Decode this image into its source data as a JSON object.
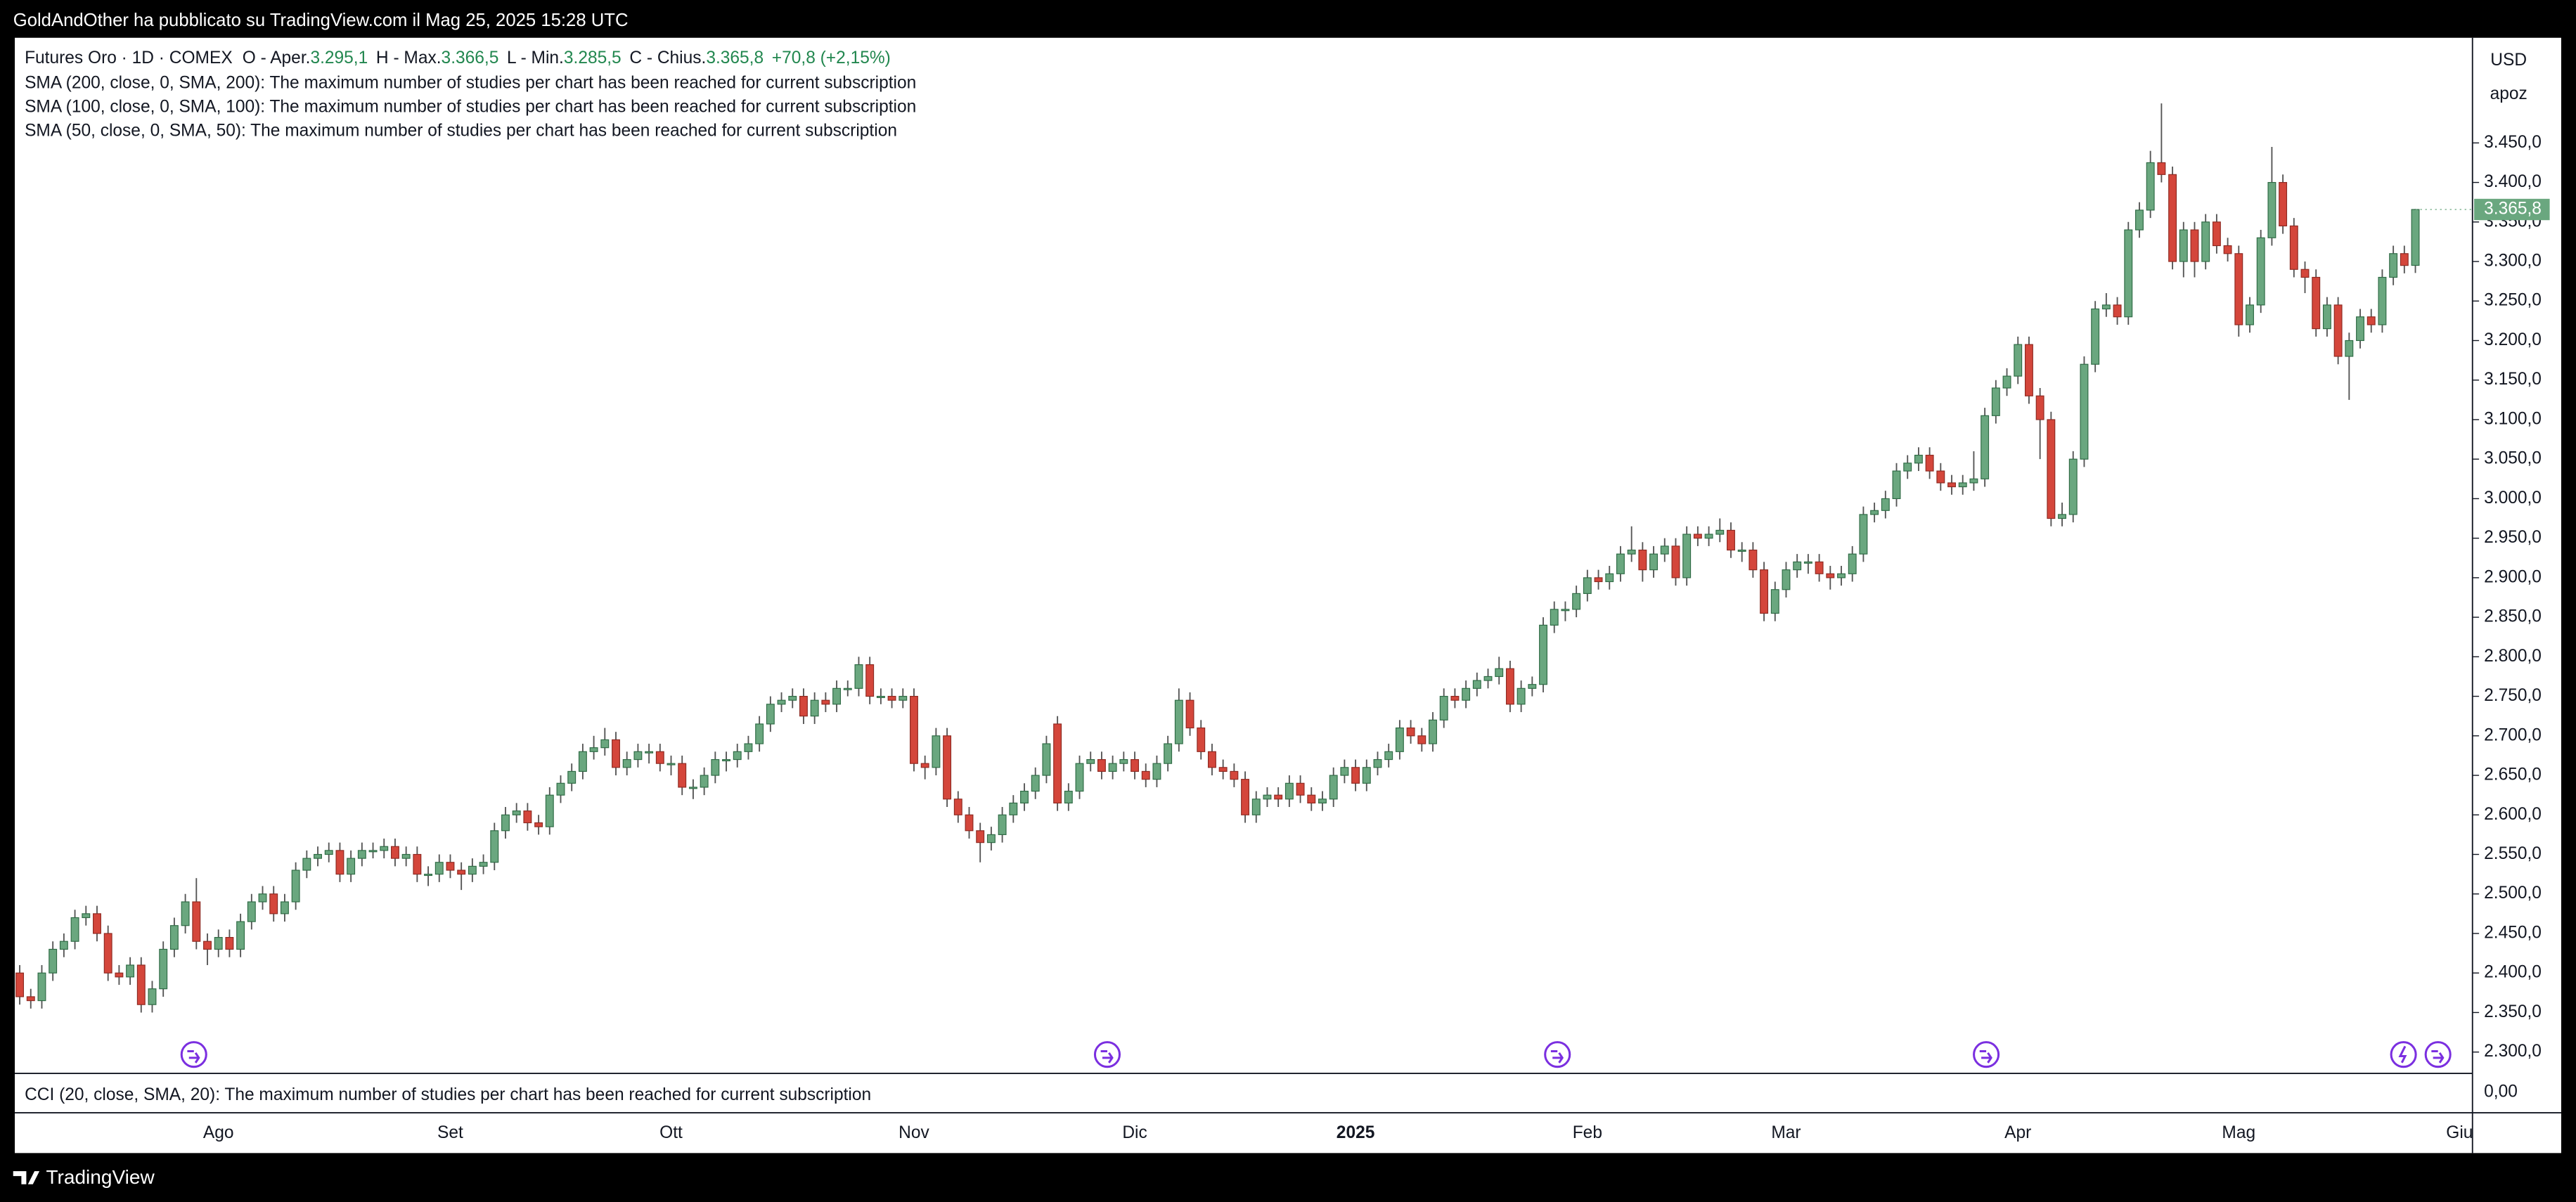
{
  "publisher_bar": "GoldAndOther ha pubblicato su TradingView.com il Mag 25, 2025 15:28 UTC",
  "footer_brand": "TradingView",
  "studies": [
    "SMA (200, close, 0, SMA, 200): The maximum number of studies per chart has been reached for current subscription",
    "SMA (100, close, 0, SMA, 100): The maximum number of studies per chart has been reached for current subscription",
    "SMA (50, close, 0, SMA, 50): The maximum number of studies per chart has been reached for current subscription"
  ],
  "cci_pane": {
    "text": "CCI (20, close, SMA, 20): The maximum number of studies per chart has been reached for current subscription",
    "yticks": [
      {
        "value": 0,
        "label": "0,00"
      }
    ]
  },
  "chart_data": {
    "type": "candlestick",
    "title": "Futures Oro · 1D · COMEX",
    "ohlc_legend": [
      {
        "key": "O - Aper.",
        "value": "3.295,1"
      },
      {
        "key": "H - Max.",
        "value": "3.366,5"
      },
      {
        "key": "L - Min.",
        "value": "3.285,5"
      },
      {
        "key": "C - Chius.",
        "value": "3.365,8"
      }
    ],
    "change": "+70,8 (+2,15%)",
    "currency": "USD",
    "scale_label": "apoz",
    "last_value_label": "3.365,8",
    "up_color": "#6aa77f",
    "down_color": "#d4463b",
    "wick_color": "#555555",
    "grid": false,
    "ylim": [
      2273,
      3583
    ],
    "yticks": [
      {
        "value": 2300,
        "label": "2.300,0"
      },
      {
        "value": 2350,
        "label": "2.350,0"
      },
      {
        "value": 2400,
        "label": "2.400,0"
      },
      {
        "value": 2450,
        "label": "2.450,0"
      },
      {
        "value": 2500,
        "label": "2.500,0"
      },
      {
        "value": 2550,
        "label": "2.550,0"
      },
      {
        "value": 2600,
        "label": "2.600,0"
      },
      {
        "value": 2650,
        "label": "2.650,0"
      },
      {
        "value": 2700,
        "label": "2.700,0"
      },
      {
        "value": 2750,
        "label": "2.750,0"
      },
      {
        "value": 2800,
        "label": "2.800,0"
      },
      {
        "value": 2850,
        "label": "2.850,0"
      },
      {
        "value": 2900,
        "label": "2.900,0"
      },
      {
        "value": 2950,
        "label": "2.950,0"
      },
      {
        "value": 3000,
        "label": "3.000,0"
      },
      {
        "value": 3050,
        "label": "3.050,0"
      },
      {
        "value": 3100,
        "label": "3.100,0"
      },
      {
        "value": 3150,
        "label": "3.150,0"
      },
      {
        "value": 3200,
        "label": "3.200,0"
      },
      {
        "value": 3250,
        "label": "3.250,0"
      },
      {
        "value": 3300,
        "label": "3.300,0"
      },
      {
        "value": 3350,
        "label": "3.350,0"
      },
      {
        "value": 3400,
        "label": "3.400,0"
      },
      {
        "value": 3450,
        "label": "3.450,0"
      }
    ],
    "categories": [
      null,
      null,
      null,
      null,
      null,
      null,
      null,
      null,
      null,
      null,
      null,
      null,
      null,
      null,
      null,
      null,
      null,
      null,
      "Ago",
      null,
      null,
      null,
      null,
      null,
      null,
      null,
      null,
      null,
      null,
      null,
      null,
      null,
      null,
      null,
      null,
      null,
      null,
      null,
      null,
      "Set",
      null,
      null,
      null,
      null,
      null,
      null,
      null,
      null,
      null,
      null,
      null,
      null,
      null,
      null,
      null,
      null,
      null,
      null,
      null,
      "Ott",
      null,
      null,
      null,
      null,
      null,
      null,
      null,
      null,
      null,
      null,
      null,
      null,
      null,
      null,
      null,
      null,
      null,
      null,
      null,
      null,
      null,
      "Nov",
      null,
      null,
      null,
      null,
      null,
      null,
      null,
      null,
      null,
      null,
      null,
      null,
      null,
      null,
      null,
      null,
      null,
      null,
      null,
      "Dic",
      null,
      null,
      null,
      null,
      null,
      null,
      null,
      null,
      null,
      null,
      null,
      null,
      null,
      null,
      null,
      null,
      null,
      null,
      null,
      "2025",
      null,
      null,
      null,
      null,
      null,
      null,
      null,
      null,
      null,
      null,
      null,
      null,
      null,
      null,
      null,
      null,
      null,
      null,
      null,
      null,
      "Feb",
      null,
      null,
      null,
      null,
      null,
      null,
      null,
      null,
      null,
      null,
      null,
      null,
      null,
      null,
      null,
      null,
      null,
      "Mar",
      null,
      null,
      null,
      null,
      null,
      null,
      null,
      null,
      null,
      null,
      null,
      null,
      null,
      null,
      null,
      null,
      null,
      null,
      null,
      null,
      "Apr",
      null,
      null,
      null,
      null,
      null,
      null,
      null,
      null,
      null,
      null,
      null,
      null,
      null,
      null,
      null,
      null,
      null,
      null,
      null,
      "Mag",
      null,
      null,
      null,
      null,
      null,
      null,
      null,
      null,
      null,
      null,
      null,
      null,
      null,
      null,
      null,
      null,
      null,
      null,
      null,
      "Giu"
    ],
    "open": [
      2400,
      2370,
      2365,
      2400,
      2430,
      2440,
      2470,
      2475,
      2450,
      2400,
      2395,
      2410,
      2360,
      2380,
      2430,
      2460,
      2490,
      2440,
      2430,
      2445,
      2430,
      2465,
      2490,
      2500,
      2475,
      2490,
      2530,
      2545,
      2550,
      2555,
      2525,
      2545,
      2555,
      2555,
      2560,
      2545,
      2550,
      2525,
      2525,
      2540,
      2530,
      2525,
      2535,
      2540,
      2580,
      2600,
      2605,
      2590,
      2585,
      2625,
      2640,
      2655,
      2680,
      2685,
      2695,
      2660,
      2670,
      2680,
      2680,
      2665,
      2665,
      2635,
      2635,
      2650,
      2670,
      2670,
      2680,
      2690,
      2715,
      2740,
      2745,
      2750,
      2725,
      2745,
      2740,
      2760,
      2760,
      2790,
      2750,
      2750,
      2745,
      2750,
      2665,
      2660,
      2700,
      2620,
      2600,
      2580,
      2565,
      2575,
      2600,
      2615,
      2630,
      2650,
      2715,
      2615,
      2630,
      2665,
      2670,
      2655,
      2665,
      2670,
      2655,
      2645,
      2665,
      2690,
      2745,
      2710,
      2680,
      2660,
      2655,
      2645,
      2600,
      2620,
      2625,
      2620,
      2640,
      2625,
      2615,
      2620,
      2650,
      2660,
      2640,
      2660,
      2670,
      2680,
      2710,
      2700,
      2690,
      2720,
      2750,
      2745,
      2760,
      2770,
      2775,
      2785,
      2740,
      2760,
      2765,
      2840,
      2860,
      2860,
      2880,
      2900,
      2895,
      2905,
      2930,
      2935,
      2910,
      2930,
      2940,
      2900,
      2955,
      2950,
      2955,
      2960,
      2935,
      2935,
      2910,
      2855,
      2885,
      2910,
      2920,
      2920,
      2905,
      2900,
      2905,
      2930,
      2980,
      2985,
      3000,
      3035,
      3045,
      3055,
      3035,
      3020,
      3015,
      3020,
      3025,
      3105,
      3140,
      3155,
      3195,
      3130,
      3100,
      2975,
      2980,
      3050,
      3170,
      3240,
      3245,
      3230,
      3340,
      3365,
      3425,
      3410,
      3300,
      3340,
      3300,
      3350,
      3320,
      3310,
      3220,
      3245,
      3330,
      3400,
      3345,
      3290,
      3280,
      3215,
      3245,
      3180,
      3200,
      3230,
      3220,
      3280,
      3310,
      3295.1,
      null,
      null,
      null,
      null
    ],
    "high": [
      2410,
      2380,
      2410,
      2440,
      2450,
      2480,
      2485,
      2485,
      2460,
      2410,
      2420,
      2420,
      2390,
      2440,
      2470,
      2500,
      2520,
      2450,
      2455,
      2455,
      2475,
      2500,
      2510,
      2510,
      2500,
      2540,
      2555,
      2560,
      2565,
      2565,
      2555,
      2565,
      2565,
      2570,
      2570,
      2560,
      2560,
      2535,
      2550,
      2550,
      2540,
      2545,
      2550,
      2590,
      2610,
      2615,
      2615,
      2600,
      2635,
      2650,
      2665,
      2690,
      2700,
      2710,
      2705,
      2680,
      2690,
      2690,
      2690,
      2675,
      2675,
      2645,
      2660,
      2680,
      2680,
      2690,
      2700,
      2725,
      2750,
      2755,
      2760,
      2760,
      2755,
      2755,
      2770,
      2770,
      2800,
      2800,
      2760,
      2760,
      2760,
      2760,
      2675,
      2710,
      2710,
      2630,
      2610,
      2590,
      2585,
      2610,
      2625,
      2640,
      2660,
      2700,
      2725,
      2640,
      2675,
      2680,
      2680,
      2675,
      2680,
      2680,
      2665,
      2675,
      2700,
      2760,
      2755,
      2720,
      2690,
      2670,
      2665,
      2655,
      2630,
      2635,
      2635,
      2650,
      2650,
      2635,
      2630,
      2660,
      2670,
      2670,
      2670,
      2680,
      2690,
      2720,
      2720,
      2710,
      2730,
      2760,
      2760,
      2770,
      2780,
      2785,
      2800,
      2795,
      2770,
      2775,
      2850,
      2870,
      2870,
      2890,
      2910,
      2910,
      2915,
      2940,
      2965,
      2945,
      2940,
      2950,
      2950,
      2965,
      2965,
      2965,
      2975,
      2970,
      2945,
      2945,
      2920,
      2895,
      2920,
      2930,
      2930,
      2930,
      2915,
      2915,
      2940,
      2990,
      2995,
      3010,
      3045,
      3055,
      3065,
      3065,
      3045,
      3030,
      3030,
      3060,
      3115,
      3150,
      3165,
      3205,
      3205,
      3140,
      3110,
      2995,
      3060,
      3180,
      3250,
      3260,
      3255,
      3350,
      3375,
      3440,
      3500,
      3420,
      3350,
      3350,
      3360,
      3360,
      3330,
      3320,
      3255,
      3340,
      3445,
      3410,
      3355,
      3300,
      3290,
      3255,
      3255,
      3210,
      3240,
      3240,
      3290,
      3320,
      3320,
      3366.5,
      null,
      null,
      null,
      null
    ],
    "low": [
      2360,
      2355,
      2355,
      2390,
      2420,
      2430,
      2460,
      2440,
      2390,
      2385,
      2385,
      2350,
      2350,
      2370,
      2420,
      2450,
      2430,
      2410,
      2420,
      2420,
      2420,
      2455,
      2480,
      2465,
      2465,
      2480,
      2520,
      2535,
      2540,
      2515,
      2515,
      2535,
      2545,
      2545,
      2535,
      2535,
      2515,
      2510,
      2515,
      2520,
      2505,
      2515,
      2525,
      2530,
      2570,
      2590,
      2580,
      2575,
      2575,
      2615,
      2630,
      2645,
      2670,
      2675,
      2650,
      2650,
      2660,
      2665,
      2655,
      2650,
      2625,
      2620,
      2625,
      2640,
      2655,
      2660,
      2670,
      2680,
      2705,
      2730,
      2735,
      2715,
      2715,
      2730,
      2730,
      2750,
      2750,
      2740,
      2740,
      2735,
      2735,
      2655,
      2645,
      2650,
      2610,
      2590,
      2570,
      2540,
      2555,
      2565,
      2590,
      2605,
      2620,
      2640,
      2605,
      2605,
      2620,
      2655,
      2645,
      2645,
      2655,
      2645,
      2635,
      2635,
      2655,
      2680,
      2700,
      2670,
      2650,
      2645,
      2635,
      2590,
      2590,
      2610,
      2610,
      2610,
      2615,
      2605,
      2605,
      2610,
      2640,
      2630,
      2630,
      2650,
      2660,
      2670,
      2690,
      2680,
      2680,
      2710,
      2735,
      2735,
      2750,
      2760,
      2765,
      2730,
      2730,
      2750,
      2755,
      2830,
      2845,
      2850,
      2870,
      2885,
      2885,
      2895,
      2920,
      2895,
      2900,
      2920,
      2890,
      2890,
      2940,
      2940,
      2945,
      2925,
      2920,
      2900,
      2845,
      2845,
      2875,
      2900,
      2905,
      2895,
      2885,
      2890,
      2895,
      2920,
      2970,
      2975,
      2990,
      3025,
      3035,
      3025,
      3010,
      3005,
      3005,
      3010,
      3015,
      3095,
      3130,
      3145,
      3120,
      3050,
      2965,
      2965,
      2970,
      3040,
      3160,
      3230,
      3220,
      3220,
      3330,
      3355,
      3400,
      3290,
      3280,
      3280,
      3290,
      3310,
      3300,
      3205,
      3210,
      3235,
      3320,
      3335,
      3280,
      3260,
      3205,
      3205,
      3170,
      3125,
      3190,
      3210,
      3210,
      3270,
      3285,
      3285.5,
      null,
      null,
      null,
      null
    ],
    "close": [
      2370,
      2365,
      2400,
      2430,
      2440,
      2470,
      2475,
      2450,
      2400,
      2395,
      2410,
      2360,
      2380,
      2430,
      2460,
      2490,
      2440,
      2430,
      2445,
      2430,
      2465,
      2490,
      2500,
      2475,
      2490,
      2530,
      2545,
      2550,
      2555,
      2525,
      2545,
      2555,
      2555,
      2560,
      2545,
      2550,
      2525,
      2525,
      2540,
      2530,
      2525,
      2535,
      2540,
      2580,
      2600,
      2605,
      2590,
      2585,
      2625,
      2640,
      2655,
      2680,
      2685,
      2695,
      2660,
      2670,
      2680,
      2680,
      2665,
      2665,
      2635,
      2635,
      2650,
      2670,
      2670,
      2680,
      2690,
      2715,
      2740,
      2745,
      2750,
      2725,
      2745,
      2740,
      2760,
      2760,
      2790,
      2750,
      2750,
      2745,
      2750,
      2665,
      2660,
      2700,
      2620,
      2600,
      2580,
      2565,
      2575,
      2600,
      2615,
      2630,
      2650,
      2690,
      2615,
      2630,
      2665,
      2670,
      2655,
      2665,
      2670,
      2655,
      2645,
      2665,
      2690,
      2745,
      2710,
      2680,
      2660,
      2655,
      2645,
      2600,
      2620,
      2625,
      2620,
      2640,
      2625,
      2615,
      2620,
      2650,
      2660,
      2640,
      2660,
      2670,
      2680,
      2710,
      2700,
      2690,
      2720,
      2750,
      2745,
      2760,
      2770,
      2775,
      2785,
      2740,
      2760,
      2765,
      2840,
      2860,
      2860,
      2880,
      2900,
      2895,
      2905,
      2930,
      2935,
      2910,
      2930,
      2940,
      2900,
      2955,
      2950,
      2955,
      2960,
      2935,
      2935,
      2910,
      2855,
      2885,
      2910,
      2920,
      2920,
      2905,
      2900,
      2905,
      2930,
      2980,
      2985,
      3000,
      3035,
      3045,
      3055,
      3035,
      3020,
      3015,
      3020,
      3025,
      3105,
      3140,
      3155,
      3195,
      3130,
      3100,
      2975,
      2980,
      3050,
      3170,
      3240,
      3245,
      3230,
      3340,
      3365,
      3425,
      3410,
      3300,
      3340,
      3300,
      3350,
      3320,
      3310,
      3220,
      3245,
      3330,
      3400,
      3345,
      3290,
      3280,
      3215,
      3245,
      3180,
      3200,
      3230,
      3220,
      3280,
      3310,
      3295,
      3365.8,
      null,
      null,
      null,
      null
    ]
  }
}
